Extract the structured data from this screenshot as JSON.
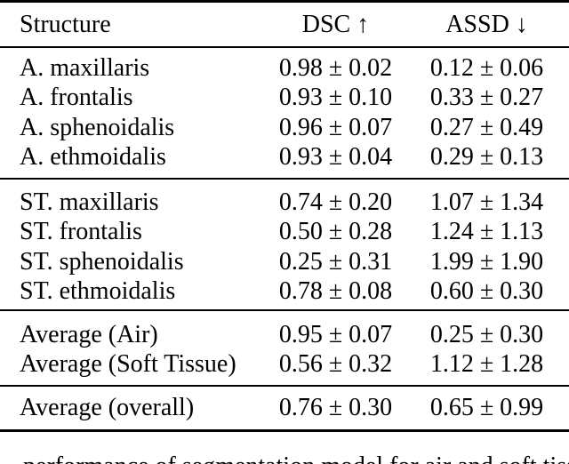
{
  "table": {
    "header": {
      "structure": "Structure",
      "dsc": "DSC ↑",
      "assd": "ASSD ↓"
    },
    "groups": [
      {
        "rows": [
          {
            "structure": "A. maxillaris",
            "dsc": "0.98 ± 0.02",
            "assd": "0.12 ± 0.06"
          },
          {
            "structure": "A. frontalis",
            "dsc": "0.93 ± 0.10",
            "assd": "0.33 ± 0.27"
          },
          {
            "structure": "A. sphenoidalis",
            "dsc": "0.96 ± 0.07",
            "assd": "0.27 ± 0.49"
          },
          {
            "structure": "A. ethmoidalis",
            "dsc": "0.93 ± 0.04",
            "assd": "0.29 ± 0.13"
          }
        ]
      },
      {
        "rows": [
          {
            "structure": "ST. maxillaris",
            "dsc": "0.74 ± 0.20",
            "assd": "1.07 ± 1.34"
          },
          {
            "structure": "ST. frontalis",
            "dsc": "0.50 ± 0.28",
            "assd": "1.24 ± 1.13"
          },
          {
            "structure": "ST. sphenoidalis",
            "dsc": "0.25 ± 0.31",
            "assd": "1.99 ± 1.90"
          },
          {
            "structure": "ST. ethmoidalis",
            "dsc": "0.78 ± 0.08",
            "assd": "0.60 ± 0.30"
          }
        ]
      },
      {
        "rows": [
          {
            "structure": "Average (Air)",
            "dsc": "0.95 ± 0.07",
            "assd": "0.25 ± 0.30"
          },
          {
            "structure": "Average (Soft Tissue)",
            "dsc": "0.56 ± 0.32",
            "assd": "1.12 ± 1.28"
          }
        ]
      },
      {
        "rows": [
          {
            "structure": "Average (overall)",
            "dsc": "0.76 ± 0.30",
            "assd": "0.65 ± 0.99"
          }
        ]
      }
    ]
  },
  "caption": {
    "fragment": "performance of segmentation model for air and soft tissue"
  }
}
